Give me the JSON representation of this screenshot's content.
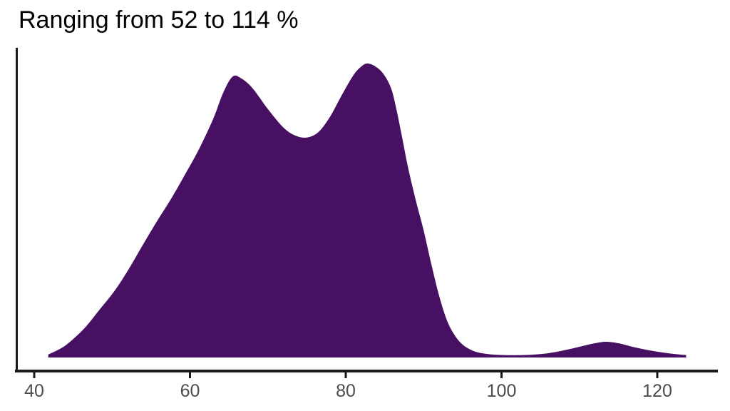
{
  "chart_data": {
    "type": "area",
    "variant": "density",
    "title": "Ranging from 52 to 114 %",
    "xlabel": "",
    "ylabel": "",
    "grid": "off",
    "legend": "none",
    "x_ticks": [
      40,
      60,
      80,
      100,
      120
    ],
    "x_axis_range": [
      37.8,
      127.8
    ],
    "x_domain": [
      41.8,
      123.7
    ],
    "annotated_range": {
      "min": 52,
      "max": 114,
      "unit": "%"
    },
    "peaks_x": [
      65.5,
      82.8,
      113.4
    ],
    "valley_x": 75.0,
    "fill_color": "#471063",
    "axis_color": "#1a1a1a",
    "tick_label_color": "#4d4d4d",
    "title_color": "#000000",
    "curve": [
      [
        41.8,
        0.01
      ],
      [
        43.5,
        0.032
      ],
      [
        44.8,
        0.058
      ],
      [
        46.6,
        0.104
      ],
      [
        48.4,
        0.163
      ],
      [
        50.3,
        0.226
      ],
      [
        52.1,
        0.299
      ],
      [
        53.9,
        0.381
      ],
      [
        55.7,
        0.461
      ],
      [
        57.6,
        0.541
      ],
      [
        59.4,
        0.624
      ],
      [
        61.2,
        0.711
      ],
      [
        63.0,
        0.813
      ],
      [
        64.3,
        0.903
      ],
      [
        65.5,
        0.956
      ],
      [
        66.6,
        0.949
      ],
      [
        68.0,
        0.917
      ],
      [
        70.0,
        0.845
      ],
      [
        72.0,
        0.782
      ],
      [
        73.5,
        0.755
      ],
      [
        75.0,
        0.748
      ],
      [
        76.5,
        0.767
      ],
      [
        78.0,
        0.82
      ],
      [
        79.5,
        0.893
      ],
      [
        81.0,
        0.961
      ],
      [
        82.0,
        0.99
      ],
      [
        82.8,
        1.0
      ],
      [
        83.8,
        0.99
      ],
      [
        84.8,
        0.966
      ],
      [
        85.8,
        0.917
      ],
      [
        86.5,
        0.845
      ],
      [
        87.3,
        0.74
      ],
      [
        88.0,
        0.646
      ],
      [
        89.0,
        0.534
      ],
      [
        90.0,
        0.432
      ],
      [
        91.0,
        0.316
      ],
      [
        92.0,
        0.209
      ],
      [
        93.0,
        0.126
      ],
      [
        94.0,
        0.075
      ],
      [
        95.0,
        0.044
      ],
      [
        96.0,
        0.027
      ],
      [
        97.0,
        0.017
      ],
      [
        98.5,
        0.011
      ],
      [
        100.0,
        0.0085
      ],
      [
        102.0,
        0.0078
      ],
      [
        104.0,
        0.0097
      ],
      [
        106.0,
        0.0146
      ],
      [
        108.0,
        0.0243
      ],
      [
        110.0,
        0.0364
      ],
      [
        112.0,
        0.0485
      ],
      [
        113.4,
        0.0534
      ],
      [
        115.0,
        0.0485
      ],
      [
        117.0,
        0.0352
      ],
      [
        119.0,
        0.0243
      ],
      [
        121.0,
        0.0158
      ],
      [
        123.0,
        0.0097
      ],
      [
        123.7,
        0.0085
      ]
    ]
  }
}
